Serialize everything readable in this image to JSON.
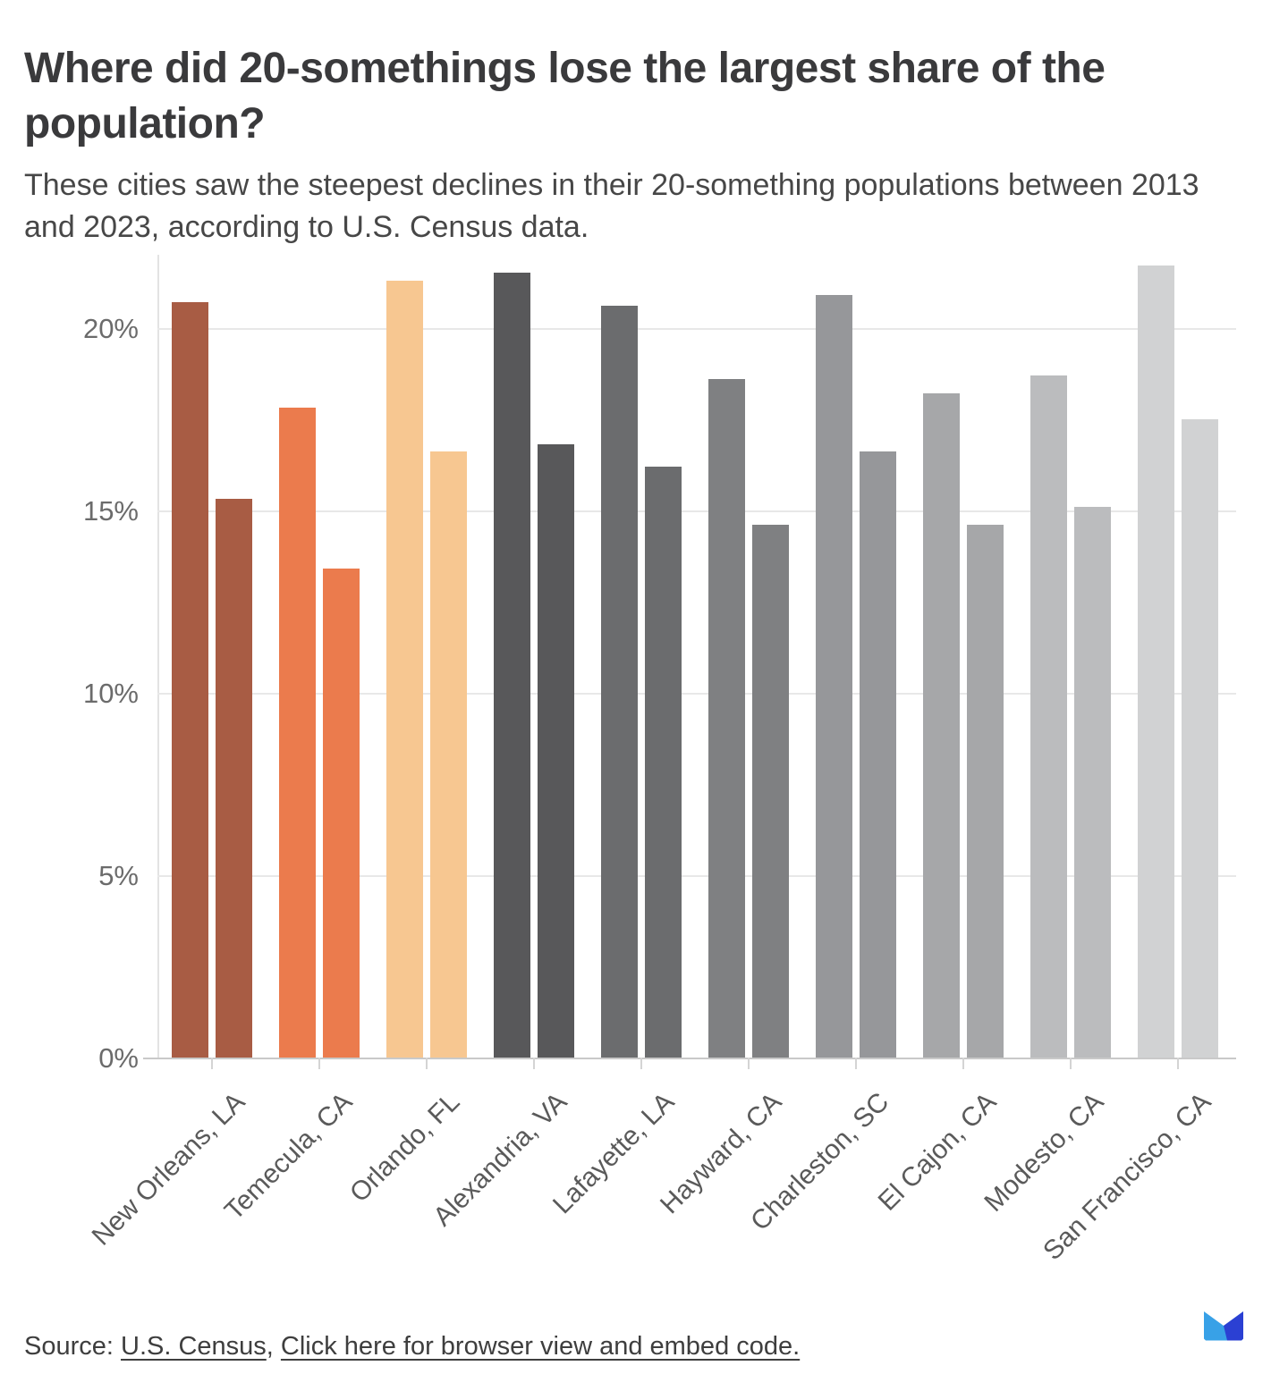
{
  "header": {
    "title": "Where did 20-somethings lose the largest share of the population?",
    "subtitle": "These cities saw the steepest declines in their 20-something populations between 2013 and 2023, according to U.S. Census data."
  },
  "chart_data": {
    "type": "bar",
    "title": "Where did 20-somethings lose the largest share of the population?",
    "categories": [
      "New Orleans, LA",
      "Temecula, CA",
      "Orlando, FL",
      "Alexandria, VA",
      "Lafayette, LA",
      "Hayward, CA",
      "Charleston, SC",
      "El Cajon, CA",
      "Modesto, CA",
      "San Francisco, CA"
    ],
    "series": [
      {
        "name": "2013",
        "values": [
          20.7,
          17.8,
          21.3,
          21.5,
          20.6,
          18.6,
          20.9,
          18.2,
          18.7,
          21.7
        ]
      },
      {
        "name": "2023",
        "values": [
          15.3,
          13.4,
          16.6,
          16.8,
          16.2,
          14.6,
          16.6,
          14.6,
          15.1,
          17.5
        ]
      }
    ],
    "bar_colors": [
      "#A85C44",
      "#EB7B4D",
      "#F7C791",
      "#58585A",
      "#6B6C6E",
      "#7F8082",
      "#96979A",
      "#A6A7A9",
      "#BBBCBE",
      "#D1D2D3"
    ],
    "xlabel": "",
    "ylabel": "",
    "ylim": [
      0,
      22
    ],
    "grid": true,
    "legend_position": "none",
    "y_axis": {
      "ticks": [
        {
          "label": "0%",
          "value": 0
        },
        {
          "label": "5%",
          "value": 5
        },
        {
          "label": "10%",
          "value": 10
        },
        {
          "label": "15%",
          "value": 15
        },
        {
          "label": "20%",
          "value": 20
        }
      ]
    }
  },
  "footer": {
    "source_label": "Source: ",
    "census_link": "U.S. Census",
    "separator": ", ",
    "embed_link": "Click here for browser view and embed code."
  },
  "logo": {
    "light_blue": "#38A1E7",
    "dark_blue": "#2B40D3"
  }
}
